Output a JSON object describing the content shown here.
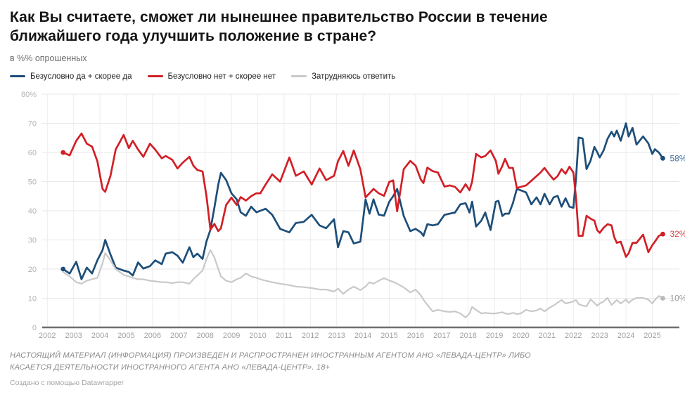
{
  "header": {
    "title": "Как Вы считаете, сможет ли нынешнее правительство России в течение ближайшего года улучшить положение в стране?",
    "subtitle": "в %% опрошенных"
  },
  "legend": [
    {
      "label": "Безусловно да + скорее да",
      "color": "#1d4e79"
    },
    {
      "label": "Безусловно нет + скорее нет",
      "color": "#d21f26"
    },
    {
      "label": "Затрудняюсь ответить",
      "color": "#c9c9c9"
    }
  ],
  "footer": {
    "disclaimer_line1": "НАСТОЯЩИЙ МАТЕРИАЛ (ИНФОРМАЦИЯ) ПРОИЗВЕДЕН И РАСПРОСТРАНЕН ИНОСТРАННЫМ АГЕНТОМ АНО «ЛЕВАДА-ЦЕНТР» ЛИБО",
    "disclaimer_line2": "КАСАЕТСЯ ДЕЯТЕЛЬНОСТИ ИНОСТРАННОГО АГЕНТА АНО «ЛЕВАДА-ЦЕНТР». 18+",
    "credit": "Создано с помощью Datawrapper"
  },
  "chart_data": {
    "type": "line",
    "title": "Как Вы считаете, сможет ли нынешнее правительство России в течение ближайшего года улучшить положение в стране?",
    "subtitle": "в %% опрошенных",
    "ylim": [
      0,
      80
    ],
    "grid": true,
    "legend_position": "top",
    "yticks": [
      0,
      10,
      20,
      30,
      40,
      50,
      60,
      70,
      80
    ],
    "ytick_labels": [
      "0",
      "10",
      "20",
      "30",
      "40",
      "50",
      "60",
      "70",
      "80%"
    ],
    "xticks": [
      2002,
      2003,
      2004,
      2005,
      2006,
      2007,
      2008,
      2009,
      2010,
      2011,
      2012,
      2013,
      2014,
      2015,
      2016,
      2017,
      2018,
      2019,
      2020,
      2021,
      2022,
      2023,
      2024,
      2025
    ],
    "x": [
      2002.6,
      2002.85,
      2003.1,
      2003.3,
      2003.5,
      2003.7,
      2003.9,
      2004.1,
      2004.2,
      2004.4,
      2004.6,
      2004.9,
      2005.1,
      2005.25,
      2005.45,
      2005.65,
      2005.9,
      2006.1,
      2006.35,
      2006.5,
      2006.75,
      2006.95,
      2007.15,
      2007.4,
      2007.55,
      2007.7,
      2007.9,
      2008.05,
      2008.2,
      2008.35,
      2008.5,
      2008.6,
      2008.8,
      2009.0,
      2009.2,
      2009.35,
      2009.55,
      2009.75,
      2009.95,
      2010.1,
      2010.3,
      2010.55,
      2010.85,
      2011.2,
      2011.45,
      2011.75,
      2012.05,
      2012.35,
      2012.6,
      2012.9,
      2013.05,
      2013.25,
      2013.45,
      2013.65,
      2013.9,
      2014.1,
      2014.25,
      2014.4,
      2014.6,
      2014.8,
      2015.0,
      2015.15,
      2015.3,
      2015.55,
      2015.8,
      2016.0,
      2016.2,
      2016.3,
      2016.45,
      2016.65,
      2016.85,
      2017.1,
      2017.3,
      2017.5,
      2017.7,
      2017.9,
      2018.05,
      2018.15,
      2018.3,
      2018.5,
      2018.65,
      2018.85,
      2019.05,
      2019.15,
      2019.3,
      2019.4,
      2019.55,
      2019.7,
      2019.85,
      2020.0,
      2020.2,
      2020.4,
      2020.6,
      2020.75,
      2020.9,
      2021.1,
      2021.25,
      2021.4,
      2021.55,
      2021.7,
      2021.85,
      2022.0,
      2022.1,
      2022.2,
      2022.35,
      2022.5,
      2022.65,
      2022.8,
      2022.9,
      2023.0,
      2023.15,
      2023.3,
      2023.45,
      2023.55,
      2023.65,
      2023.8,
      2024.0,
      2024.1,
      2024.25,
      2024.4,
      2024.65,
      2024.85,
      2025.0,
      2025.1,
      2025.25,
      2025.4
    ],
    "series": [
      {
        "name": "Безусловно да + скорее да",
        "color": "#1d4e79",
        "label_color": "#46709a",
        "end_label": "58%",
        "width": 2.7,
        "values": [
          20,
          18.5,
          22.5,
          16.5,
          20.5,
          18.5,
          23,
          26.5,
          30,
          25,
          20.5,
          19.5,
          19,
          17.8,
          22.3,
          20.2,
          21,
          23,
          21.7,
          25.3,
          25.8,
          24.6,
          22.2,
          27.5,
          24.1,
          25.3,
          23.5,
          29.5,
          33.5,
          41,
          49,
          53,
          50.5,
          46,
          43.9,
          39.5,
          38.3,
          41.4,
          39.5,
          40,
          40.7,
          38.6,
          33.8,
          32.6,
          35.8,
          36.2,
          38.6,
          35,
          34,
          37.1,
          27.5,
          33,
          32.6,
          28.8,
          29.4,
          43.9,
          39,
          43.9,
          38.7,
          38.3,
          43.1,
          45,
          47.5,
          38.2,
          33,
          33.8,
          32.6,
          31.4,
          35.4,
          35,
          35.4,
          38.6,
          39,
          39.4,
          42.2,
          42.6,
          39.4,
          43.1,
          34.6,
          36.6,
          39.4,
          33.4,
          43.1,
          43.4,
          38.2,
          39,
          39,
          42.6,
          47.5,
          47,
          46.3,
          42.2,
          44.6,
          42.2,
          45.8,
          42.2,
          44.6,
          45.1,
          41.4,
          44.3,
          41.4,
          41,
          51,
          65.1,
          64.8,
          54.3,
          57.1,
          61.9,
          60.2,
          58.3,
          60.7,
          64.7,
          67.1,
          65.5,
          67.5,
          64,
          70,
          65.5,
          68.4,
          62.7,
          65.5,
          63.1,
          59.5,
          61.1,
          60,
          58
        ]
      },
      {
        "name": "Безусловно нет + скорее нет",
        "color": "#d21f26",
        "label_color": "#d4494e",
        "end_label": "32%",
        "width": 2.7,
        "values": [
          60,
          59,
          64,
          66.5,
          63,
          62,
          57,
          47.5,
          46.5,
          52,
          61,
          66,
          61.5,
          64,
          61,
          58.5,
          63,
          61,
          58,
          58.8,
          57.5,
          54.5,
          56.5,
          58.5,
          55.5,
          54,
          53.5,
          45,
          33.5,
          35.5,
          33,
          34,
          42,
          44.5,
          42,
          44.7,
          43.5,
          45,
          46,
          46,
          49,
          52.5,
          50,
          58.3,
          52,
          53.5,
          49,
          54.5,
          50.5,
          52,
          57,
          60.5,
          55.4,
          60.7,
          54.2,
          44.6,
          46,
          47.5,
          46,
          45.1,
          49.9,
          50.4,
          39.8,
          54.3,
          57.1,
          55.5,
          50.7,
          49.5,
          54.8,
          53.6,
          53.1,
          48.3,
          48.7,
          48.2,
          46.3,
          49.1,
          47,
          50,
          59.5,
          58.3,
          58.8,
          60.7,
          57.1,
          52.7,
          55.4,
          57.8,
          54.7,
          54.7,
          47.8,
          48.2,
          48.7,
          50.3,
          51.9,
          53.1,
          54.7,
          52.3,
          50.7,
          51.9,
          54.3,
          52.7,
          55.1,
          53.1,
          44.6,
          31.4,
          31.4,
          38.3,
          37.3,
          36.6,
          33.4,
          32.4,
          34.2,
          35.4,
          35,
          31,
          29,
          29.4,
          24.2,
          25.4,
          29,
          29,
          31.8,
          25.8,
          28.2,
          29.4,
          31.4,
          32
        ]
      },
      {
        "name": "Затрудняюсь ответить",
        "color": "#c9c9c9",
        "label_color": "#9d9d9d",
        "end_label": "10%",
        "width": 2.2,
        "values": [
          19,
          17.5,
          15.5,
          15,
          16,
          16.5,
          17,
          22,
          25.5,
          23,
          20,
          18,
          17.5,
          17,
          16.5,
          16.5,
          16,
          15.8,
          15.5,
          15.5,
          15.2,
          15.5,
          15.5,
          15,
          16.5,
          17.8,
          19.5,
          23.5,
          26.5,
          24,
          20,
          17.5,
          16,
          15.5,
          16.5,
          17,
          18.5,
          17.5,
          17,
          16.5,
          16,
          15.5,
          15,
          14.5,
          14,
          13.8,
          13.5,
          13,
          13,
          12.3,
          13.3,
          11.5,
          13,
          14,
          12.8,
          14,
          15.5,
          15,
          16,
          16.9,
          16.1,
          15.6,
          15,
          13.7,
          12,
          13,
          11,
          9.5,
          7.7,
          5.5,
          6,
          5.5,
          5.3,
          5.5,
          4.8,
          3.4,
          4.8,
          7,
          6,
          4.8,
          5,
          4.8,
          4.8,
          5,
          5.2,
          4.8,
          4.6,
          5,
          4.6,
          4.8,
          6,
          5.5,
          5.8,
          6.5,
          5.5,
          6.8,
          7.5,
          8.5,
          9.4,
          8.2,
          8.5,
          8.9,
          9.4,
          8,
          7.5,
          7.2,
          9.6,
          8.4,
          7.4,
          8.2,
          8.9,
          10.1,
          7.7,
          8.5,
          9.4,
          8.2,
          9.6,
          8.4,
          9.5,
          10.1,
          10.1,
          9.5,
          8.2,
          9.4,
          10.8,
          10
        ]
      }
    ]
  }
}
